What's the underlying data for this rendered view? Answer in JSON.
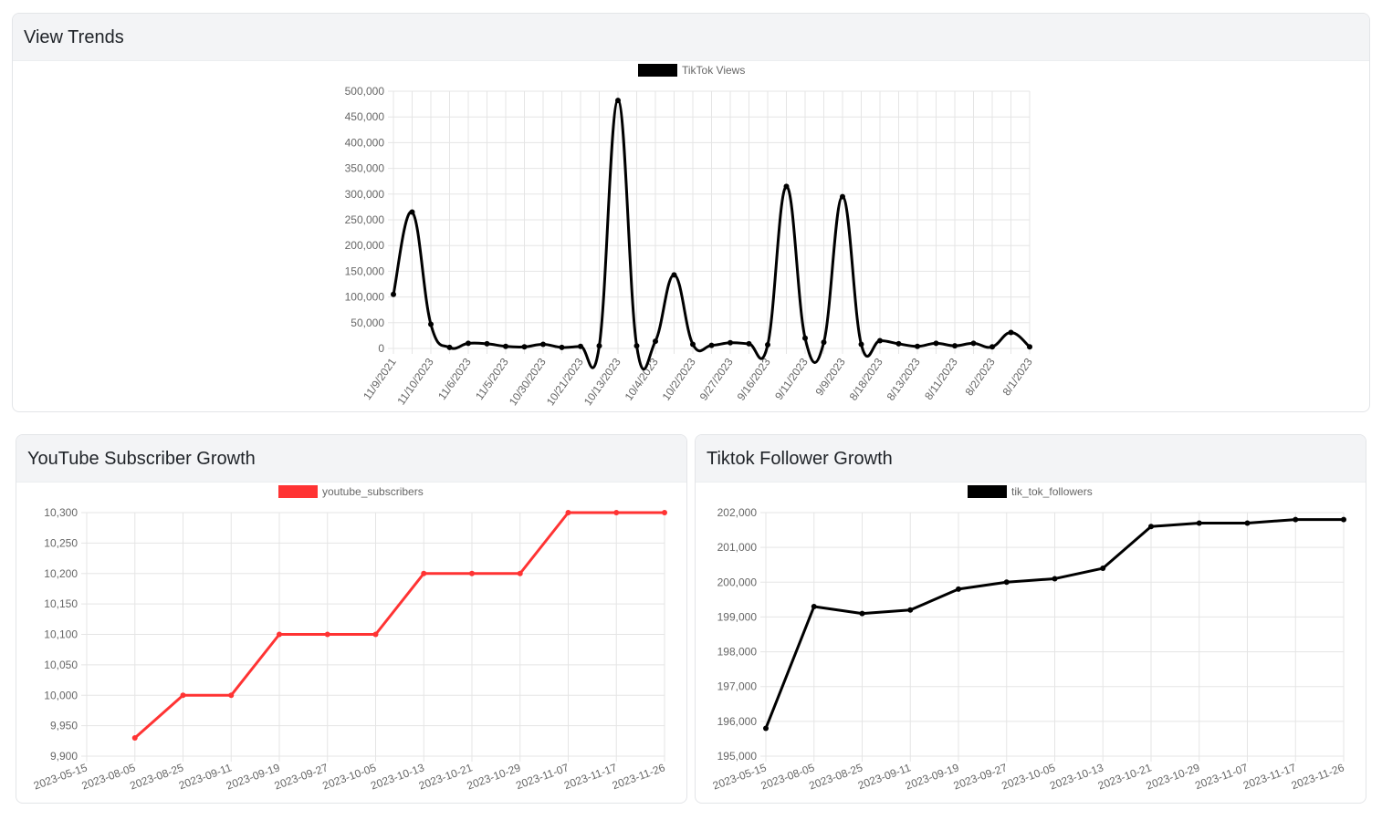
{
  "cards": {
    "views": {
      "title": "View Trends"
    },
    "youtube": {
      "title": "YouTube Subscriber Growth"
    },
    "tiktok": {
      "title": "Tiktok Follower Growth"
    }
  },
  "chart_data": [
    {
      "id": "views",
      "type": "line",
      "categories": [
        "11/9/2021",
        "11/10/2023",
        "11/6/2023",
        "11/5/2023",
        "10/30/2023",
        "10/21/2023",
        "10/13/2023",
        "10/4/2023",
        "10/2/2023",
        "9/27/2023",
        "9/16/2023",
        "9/11/2023",
        "9/9/2023",
        "8/18/2023",
        "8/13/2023",
        "8/11/2023",
        "8/2/2023",
        "8/1/2023"
      ],
      "x": [
        "11/9/2021",
        "",
        "11/10/2023",
        "",
        "11/6/2023",
        "",
        "11/5/2023",
        "",
        "10/30/2023",
        "",
        "10/21/2023",
        "",
        "10/13/2023",
        "",
        "10/4/2023",
        "",
        "10/2/2023",
        "",
        "9/27/2023",
        "",
        "9/16/2023",
        "",
        "9/11/2023",
        "",
        "9/9/2023",
        "",
        "8/18/2023",
        "",
        "8/13/2023",
        "",
        "8/11/2023",
        "",
        "8/2/2023",
        "",
        "8/1/2023"
      ],
      "series": [
        {
          "name": "TikTok Views",
          "color": "#000000",
          "values": [
            105000,
            265000,
            47000,
            2000,
            10000,
            9000,
            4000,
            3000,
            8000,
            2000,
            4000,
            5000,
            482000,
            5000,
            14000,
            143000,
            8000,
            6000,
            11000,
            9000,
            7000,
            315000,
            20000,
            12000,
            295000,
            8000,
            15000,
            9000,
            4000,
            10000,
            5000,
            10000,
            3000,
            31000,
            3000
          ]
        }
      ],
      "ylim": [
        0,
        500000
      ],
      "yticks": [
        "0",
        "50,000",
        "100,000",
        "150,000",
        "200,000",
        "250,000",
        "300,000",
        "350,000",
        "400,000",
        "450,000",
        "500,000"
      ],
      "legend": "top",
      "grid": true
    },
    {
      "id": "youtube",
      "type": "line",
      "categories": [
        "2023-05-15",
        "2023-08-05",
        "2023-08-25",
        "2023-09-11",
        "2023-09-19",
        "2023-09-27",
        "2023-10-05",
        "2023-10-13",
        "2023-10-21",
        "2023-10-29",
        "2023-11-07",
        "2023-11-17",
        "2023-11-26"
      ],
      "series": [
        {
          "name": "youtube_subscribers",
          "color": "#ff3333",
          "values": [
            null,
            9930,
            10000,
            10000,
            10100,
            10100,
            10100,
            10200,
            10200,
            10200,
            10300,
            10300,
            10300
          ]
        }
      ],
      "ylim": [
        9900,
        10300
      ],
      "yticks": [
        "9,900",
        "9,950",
        "10,000",
        "10,050",
        "10,100",
        "10,150",
        "10,200",
        "10,250",
        "10,300"
      ],
      "legend": "top",
      "grid": true
    },
    {
      "id": "tiktok",
      "type": "line",
      "categories": [
        "2023-05-15",
        "2023-08-05",
        "2023-08-25",
        "2023-09-11",
        "2023-09-19",
        "2023-09-27",
        "2023-10-05",
        "2023-10-13",
        "2023-10-21",
        "2023-10-29",
        "2023-11-07",
        "2023-11-17",
        "2023-11-26"
      ],
      "series": [
        {
          "name": "tik_tok_followers",
          "color": "#000000",
          "values": [
            195800,
            199300,
            199100,
            199200,
            199800,
            200000,
            200100,
            200400,
            201600,
            201700,
            201700,
            201800,
            201800
          ]
        }
      ],
      "ylim": [
        195000,
        202000
      ],
      "yticks": [
        "195,000",
        "196,000",
        "197,000",
        "198,000",
        "199,000",
        "200,000",
        "201,000",
        "202,000"
      ],
      "legend": "top",
      "grid": true
    }
  ]
}
